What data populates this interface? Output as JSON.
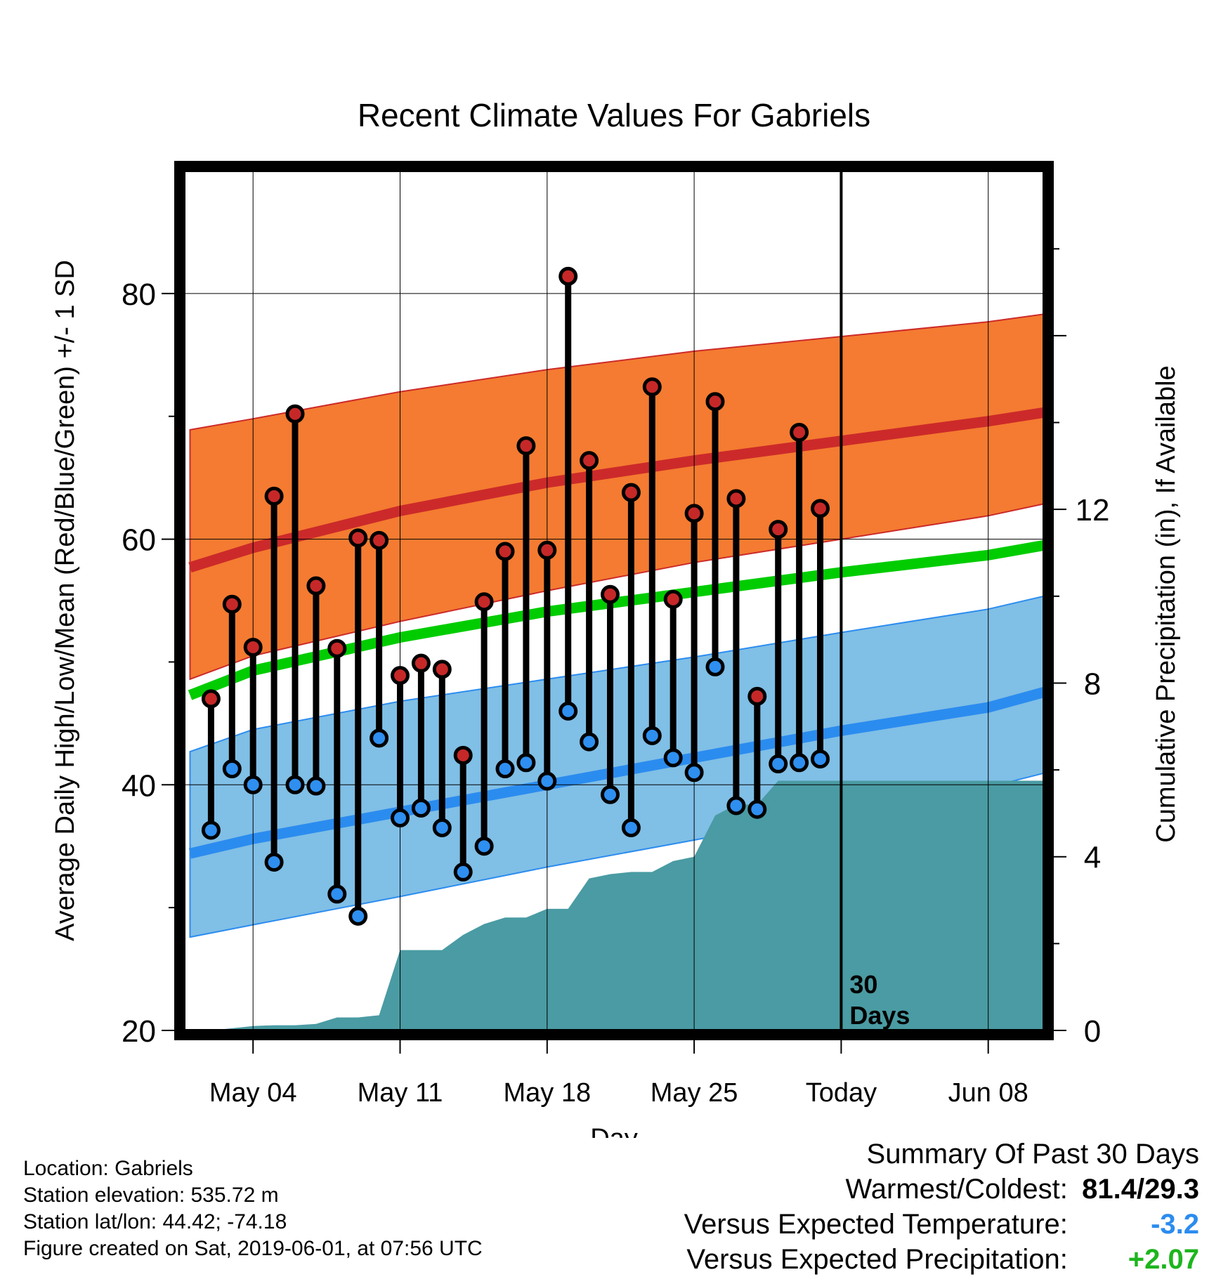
{
  "chart_data": {
    "type": "line",
    "title": "Recent Climate Values For Gabriels",
    "xlabel": "Day",
    "ylabel": "Average Daily High/Low/Mean (Red/Blue/Green) +/- 1 SD",
    "y2label": "Cumulative Precipitation (in), If Available",
    "ylim": [
      20,
      90
    ],
    "y2lim": [
      0,
      19.8
    ],
    "yticks": [
      20,
      40,
      60,
      80
    ],
    "y2ticks": [
      0,
      4,
      8,
      12
    ],
    "xticks": [
      {
        "label": "May 04",
        "day": 3
      },
      {
        "label": "May 11",
        "day": 10
      },
      {
        "label": "May 18",
        "day": 17
      },
      {
        "label": "May 25",
        "day": 24
      },
      {
        "label": "Today",
        "day": 31
      },
      {
        "label": "Jun 08",
        "day": 38
      }
    ],
    "today_marker": {
      "day": 31,
      "label_line1": "30",
      "label_line2": "Days"
    },
    "grid": true,
    "days": [
      1,
      2,
      3,
      4,
      5,
      6,
      7,
      8,
      9,
      10,
      11,
      12,
      13,
      14,
      15,
      16,
      17,
      18,
      19,
      20,
      21,
      22,
      23,
      24,
      25,
      26,
      27,
      28,
      29,
      30
    ],
    "daily_high": [
      47.0,
      54.7,
      51.2,
      63.5,
      70.2,
      56.2,
      51.1,
      60.1,
      59.9,
      48.9,
      49.9,
      49.4,
      42.4,
      54.9,
      59.0,
      67.6,
      59.1,
      81.4,
      66.4,
      55.5,
      63.8,
      72.4,
      55.1,
      62.1,
      71.2,
      63.3,
      47.2,
      60.8,
      68.7,
      62.5
    ],
    "daily_low": [
      36.3,
      41.3,
      40.0,
      33.7,
      40.0,
      39.9,
      31.1,
      29.3,
      43.8,
      37.3,
      38.1,
      36.5,
      32.9,
      35.0,
      41.3,
      41.8,
      40.3,
      46.0,
      43.5,
      39.2,
      36.5,
      44.0,
      42.2,
      41.0,
      49.6,
      38.3,
      38.0,
      41.7,
      41.8,
      42.1
    ],
    "normal_days": [
      0,
      3,
      10,
      17,
      24,
      31,
      38,
      41
    ],
    "normal_high_mean": [
      57.7,
      59.3,
      62.3,
      64.6,
      66.4,
      68.0,
      69.6,
      70.4
    ],
    "normal_high_plus_sd": [
      68.9,
      69.8,
      72.0,
      73.8,
      75.3,
      76.5,
      77.7,
      78.4
    ],
    "normal_high_minus_sd": [
      48.6,
      50.5,
      53.3,
      55.8,
      58.1,
      60.0,
      61.9,
      63.0
    ],
    "normal_mean": [
      47.3,
      49.3,
      52.0,
      54.1,
      55.7,
      57.3,
      58.7,
      59.6
    ],
    "normal_low_mean": [
      34.4,
      35.6,
      37.8,
      40.0,
      42.2,
      44.4,
      46.3,
      47.7
    ],
    "normal_low_plus_sd": [
      42.7,
      44.5,
      46.8,
      48.6,
      50.4,
      52.4,
      54.3,
      55.5
    ],
    "normal_low_minus_sd": [
      27.6,
      28.6,
      30.9,
      33.3,
      35.5,
      37.8,
      39.8,
      41.1
    ],
    "precip_cumulative": [
      [
        0,
        0
      ],
      [
        1,
        0
      ],
      [
        2,
        0.05
      ],
      [
        3,
        0.1
      ],
      [
        4,
        0.12
      ],
      [
        5,
        0.12
      ],
      [
        6,
        0.15
      ],
      [
        7,
        0.3
      ],
      [
        8,
        0.3
      ],
      [
        9,
        0.35
      ],
      [
        10,
        1.85
      ],
      [
        11,
        1.85
      ],
      [
        12,
        1.85
      ],
      [
        13,
        2.2
      ],
      [
        14,
        2.45
      ],
      [
        15,
        2.6
      ],
      [
        16,
        2.6
      ],
      [
        17,
        2.8
      ],
      [
        18,
        2.8
      ],
      [
        19,
        3.5
      ],
      [
        20,
        3.6
      ],
      [
        21,
        3.65
      ],
      [
        22,
        3.65
      ],
      [
        23,
        3.9
      ],
      [
        24,
        4.0
      ],
      [
        25,
        4.95
      ],
      [
        26,
        5.2
      ],
      [
        27,
        5.2
      ],
      [
        28,
        5.75
      ],
      [
        29,
        5.75
      ],
      [
        30,
        5.75
      ],
      [
        31,
        5.75
      ],
      [
        41,
        5.75
      ]
    ],
    "colors": {
      "high_band": "#f47b31",
      "high_line": "#cc2a2a",
      "mean_line": "#00cc00",
      "low_band": "#80bfe6",
      "low_line": "#2b8cef",
      "precip": "#4a9ba3",
      "high_marker": "#c62828",
      "low_marker": "#2e8ff0"
    }
  },
  "footer": {
    "location": "Location: Gabriels",
    "elevation": "Station elevation: 535.72 m",
    "latlon": "Station lat/lon: 44.42; -74.18",
    "created": "Figure created on Sat, 2019-06-01, at 07:56 UTC"
  },
  "summary": {
    "title": "Summary Of Past 30 Days",
    "warmest_label": "Warmest/Coldest:",
    "warmest_value": "81.4/29.3",
    "temp_label": "Versus Expected Temperature:",
    "temp_value": "-3.2",
    "temp_color": "#2b8cef",
    "precip_label": "Versus Expected Precipitation:",
    "precip_value": "+2.07",
    "precip_color": "#1db51d"
  }
}
